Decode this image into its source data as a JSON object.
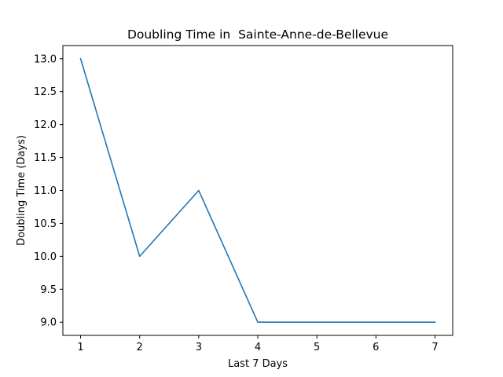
{
  "chart_data": {
    "type": "line",
    "title": "Doubling Time in  Sainte-Anne-de-Bellevue",
    "xlabel": "Last 7 Days",
    "ylabel": "Doubling Time (Days)",
    "x": [
      1,
      2,
      3,
      4,
      5,
      6,
      7
    ],
    "series": [
      {
        "values": [
          13.0,
          10.0,
          11.0,
          9.0,
          9.0,
          9.0,
          9.0
        ],
        "color": "#1f77b4"
      }
    ],
    "xlim": [
      0.7,
      7.3
    ],
    "ylim": [
      8.8,
      13.2
    ],
    "xticks": [
      "1",
      "2",
      "3",
      "4",
      "5",
      "6",
      "7"
    ],
    "yticks": [
      "9.0",
      "9.5",
      "10.0",
      "10.5",
      "11.0",
      "11.5",
      "12.0",
      "12.5",
      "13.0"
    ],
    "grid": false,
    "legend": "none"
  }
}
